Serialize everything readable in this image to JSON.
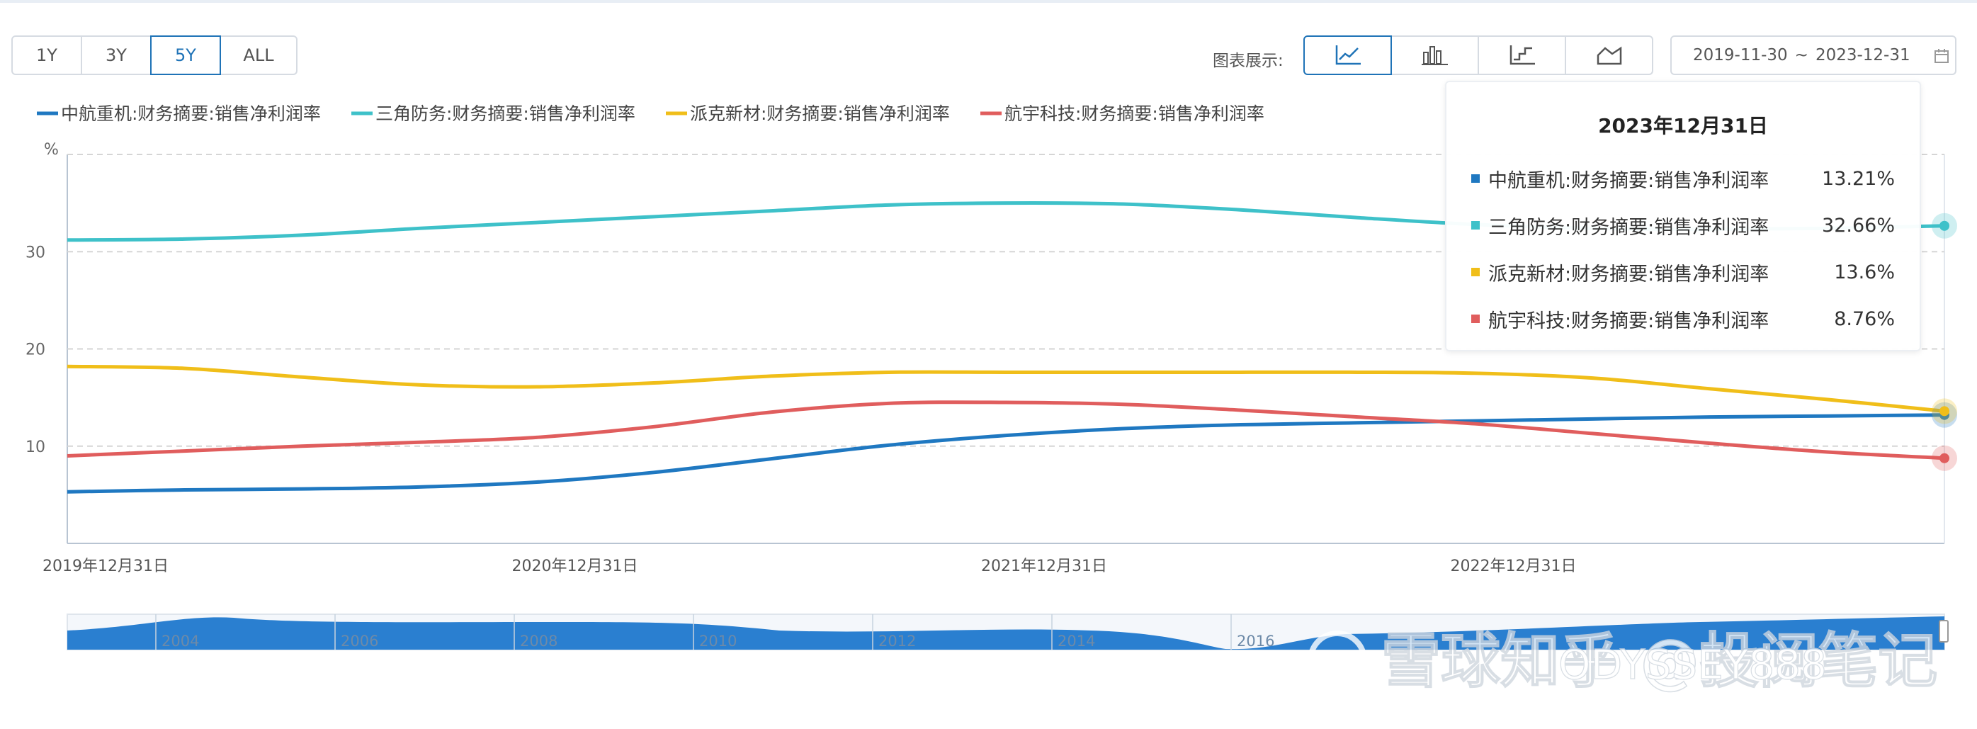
{
  "range_buttons": [
    {
      "label": "1Y",
      "active": false
    },
    {
      "label": "3Y",
      "active": false
    },
    {
      "label": "5Y",
      "active": true
    },
    {
      "label": "ALL",
      "active": false
    }
  ],
  "chart_type_label": "图表展示:",
  "chart_type_icons": [
    "line-chart-icon",
    "bar-chart-icon",
    "step-chart-icon",
    "area-chart-icon"
  ],
  "date_range": {
    "start": "2019-11-30",
    "separator": "~",
    "end": "2023-12-31"
  },
  "tooltip": {
    "title": "2023年12月31日",
    "rows": [
      {
        "name": "中航重机:财务摘要:销售净利润率",
        "value": "13.21%",
        "color": "#1f78c1"
      },
      {
        "name": "三角防务:财务摘要:销售净利润率",
        "value": "32.66%",
        "color": "#3ec1c9"
      },
      {
        "name": "派克新材:财务摘要:销售净利润率",
        "value": "13.6%",
        "color": "#f0be19"
      },
      {
        "name": "航宇科技:财务摘要:销售净利润率",
        "value": "8.76%",
        "color": "#e05d5d"
      }
    ]
  },
  "navigator": {
    "years": [
      "2004",
      "2006",
      "2008",
      "2010",
      "2012",
      "2014",
      "2016"
    ]
  },
  "watermark": {
    "main": "雪球知乎 @投阅笔记",
    "sub": "ODYSSEY888"
  },
  "chart_data": {
    "type": "line",
    "ylabel": "%",
    "ylim": [
      0,
      40
    ],
    "yticks": [
      10,
      20,
      30
    ],
    "x": [
      "2019-12-31",
      "2020-03-31",
      "2020-06-30",
      "2020-09-30",
      "2020-12-31",
      "2021-03-31",
      "2021-06-30",
      "2021-09-30",
      "2021-12-31",
      "2022-03-31",
      "2022-06-30",
      "2022-09-30",
      "2022-12-31",
      "2023-03-31",
      "2023-06-30",
      "2023-09-30",
      "2023-12-31"
    ],
    "xticks": [
      "2019年12月31日",
      "2020年12月31日",
      "2021年12月31日",
      "2022年12月31日"
    ],
    "grid": true,
    "legend_position": "top-left",
    "series": [
      {
        "name": "中航重机:财务摘要:销售净利润率",
        "color": "#1f78c1",
        "values": [
          5.3,
          5.5,
          5.6,
          5.8,
          6.3,
          7.3,
          8.7,
          10.1,
          11.1,
          11.8,
          12.2,
          12.4,
          12.6,
          12.8,
          13.0,
          13.1,
          13.21
        ]
      },
      {
        "name": "三角防务:财务摘要:销售净利润率",
        "color": "#3ec1c9",
        "values": [
          31.2,
          31.3,
          31.7,
          32.4,
          33.0,
          33.6,
          34.2,
          34.8,
          35.0,
          34.9,
          34.3,
          33.5,
          32.8,
          32.4,
          32.3,
          32.4,
          32.66
        ]
      },
      {
        "name": "派克新材:财务摘要:销售净利润率",
        "color": "#f0be19",
        "values": [
          18.2,
          18.0,
          17.1,
          16.3,
          16.1,
          16.5,
          17.2,
          17.6,
          17.6,
          17.6,
          17.6,
          17.6,
          17.5,
          17.0,
          15.9,
          14.8,
          13.6
        ]
      },
      {
        "name": "航宇科技:财务摘要:销售净利润率",
        "color": "#e05d5d",
        "values": [
          9.0,
          9.5,
          10.0,
          10.4,
          10.9,
          12.0,
          13.5,
          14.4,
          14.5,
          14.3,
          13.7,
          13.0,
          12.3,
          11.3,
          10.3,
          9.4,
          8.76
        ]
      }
    ]
  }
}
